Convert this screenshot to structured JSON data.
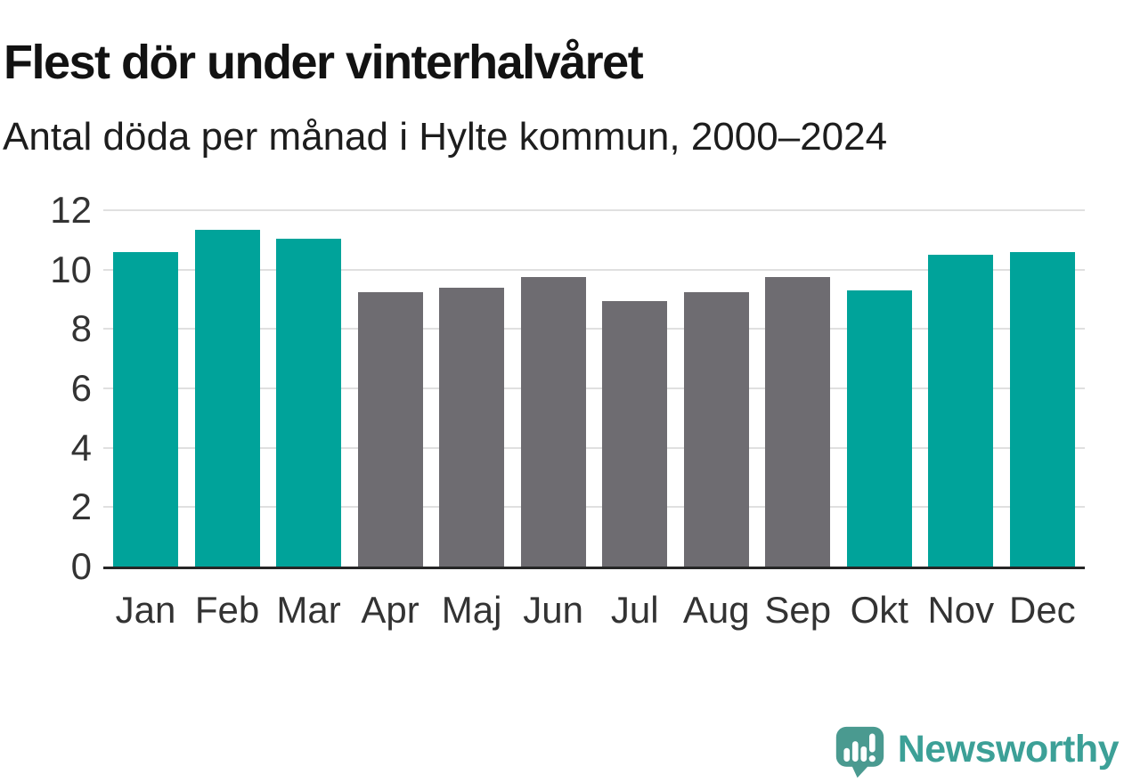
{
  "header": {
    "title": "Flest dör under vinterhalvåret",
    "subtitle": "Antal döda per månad i Hylte kommun, 2000–2024"
  },
  "chart_data": {
    "type": "bar",
    "title": "Flest dör under vinterhalvåret",
    "subtitle": "Antal döda per månad i Hylte kommun, 2000–2024",
    "categories": [
      "Jan",
      "Feb",
      "Mar",
      "Apr",
      "Maj",
      "Jun",
      "Jul",
      "Aug",
      "Sep",
      "Okt",
      "Nov",
      "Dec"
    ],
    "values": [
      10.6,
      11.35,
      11.05,
      9.25,
      9.4,
      9.75,
      8.95,
      9.25,
      9.75,
      9.3,
      10.5,
      10.6
    ],
    "bar_colors": [
      "#00a39a",
      "#00a39a",
      "#00a39a",
      "#6e6c71",
      "#6e6c71",
      "#6e6c71",
      "#6e6c71",
      "#6e6c71",
      "#6e6c71",
      "#00a39a",
      "#00a39a",
      "#00a39a"
    ],
    "highlight_color_winter": "#00a39a",
    "base_color_summer": "#6e6c71",
    "xlabel": "",
    "ylabel": "",
    "ylim": [
      0,
      12
    ],
    "yticks": [
      0,
      2,
      4,
      6,
      8,
      10,
      12
    ],
    "grid": true,
    "gridline_color": "#e0e0e0",
    "axis_color": "#262626",
    "tick_label_color": "#333333",
    "legend": false
  },
  "footer": {
    "brand": "Newsworthy",
    "brand_text_color": "#3ca097",
    "logo_icon_color": "#4a9a90",
    "logo_glyph_color": "#ffffff"
  },
  "icons": {
    "logo": "newsworthy-speech-bubble-bar-chart-icon"
  }
}
